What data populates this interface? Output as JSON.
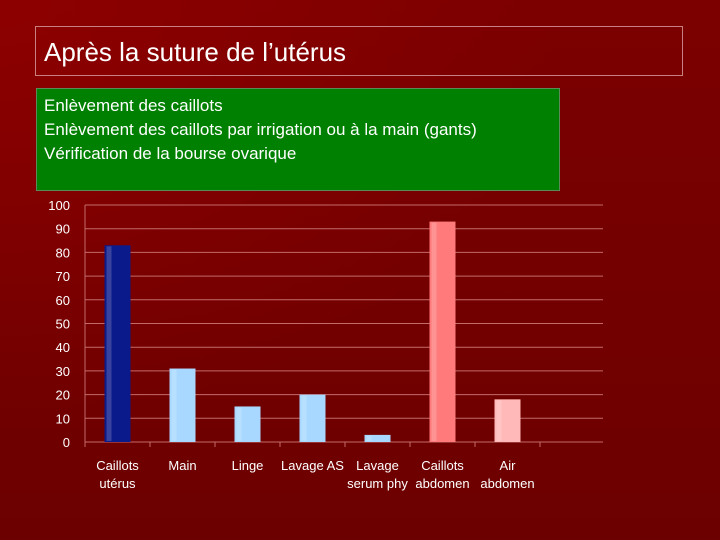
{
  "slide": {
    "title": "Après la suture de l’utérus",
    "bullets": [
      "Enlèvement des caillots",
      "Enlèvement des caillots par irrigation ou à la main (gants)",
      "Vérification de la bourse ovarique"
    ]
  },
  "chart_data": {
    "type": "bar",
    "categories": [
      [
        "Caillots",
        "utérus"
      ],
      [
        "Main"
      ],
      [
        "Linge"
      ],
      [
        "Lavage AS"
      ],
      [
        "Lavage",
        "serum phy"
      ],
      [
        "Caillots",
        "abdomen"
      ],
      [
        "Air",
        "abdomen"
      ]
    ],
    "values": [
      83,
      31,
      15,
      20,
      3,
      93,
      18
    ],
    "colors": [
      "#0b1a8a",
      "#a8d8ff",
      "#a8d8ff",
      "#a8d8ff",
      "#a8d8ff",
      "#ff7a7a",
      "#ffb9b9"
    ],
    "ylim": [
      0,
      100
    ],
    "yticks": [
      0,
      10,
      20,
      30,
      40,
      50,
      60,
      70,
      80,
      90,
      100
    ],
    "grid": true
  }
}
